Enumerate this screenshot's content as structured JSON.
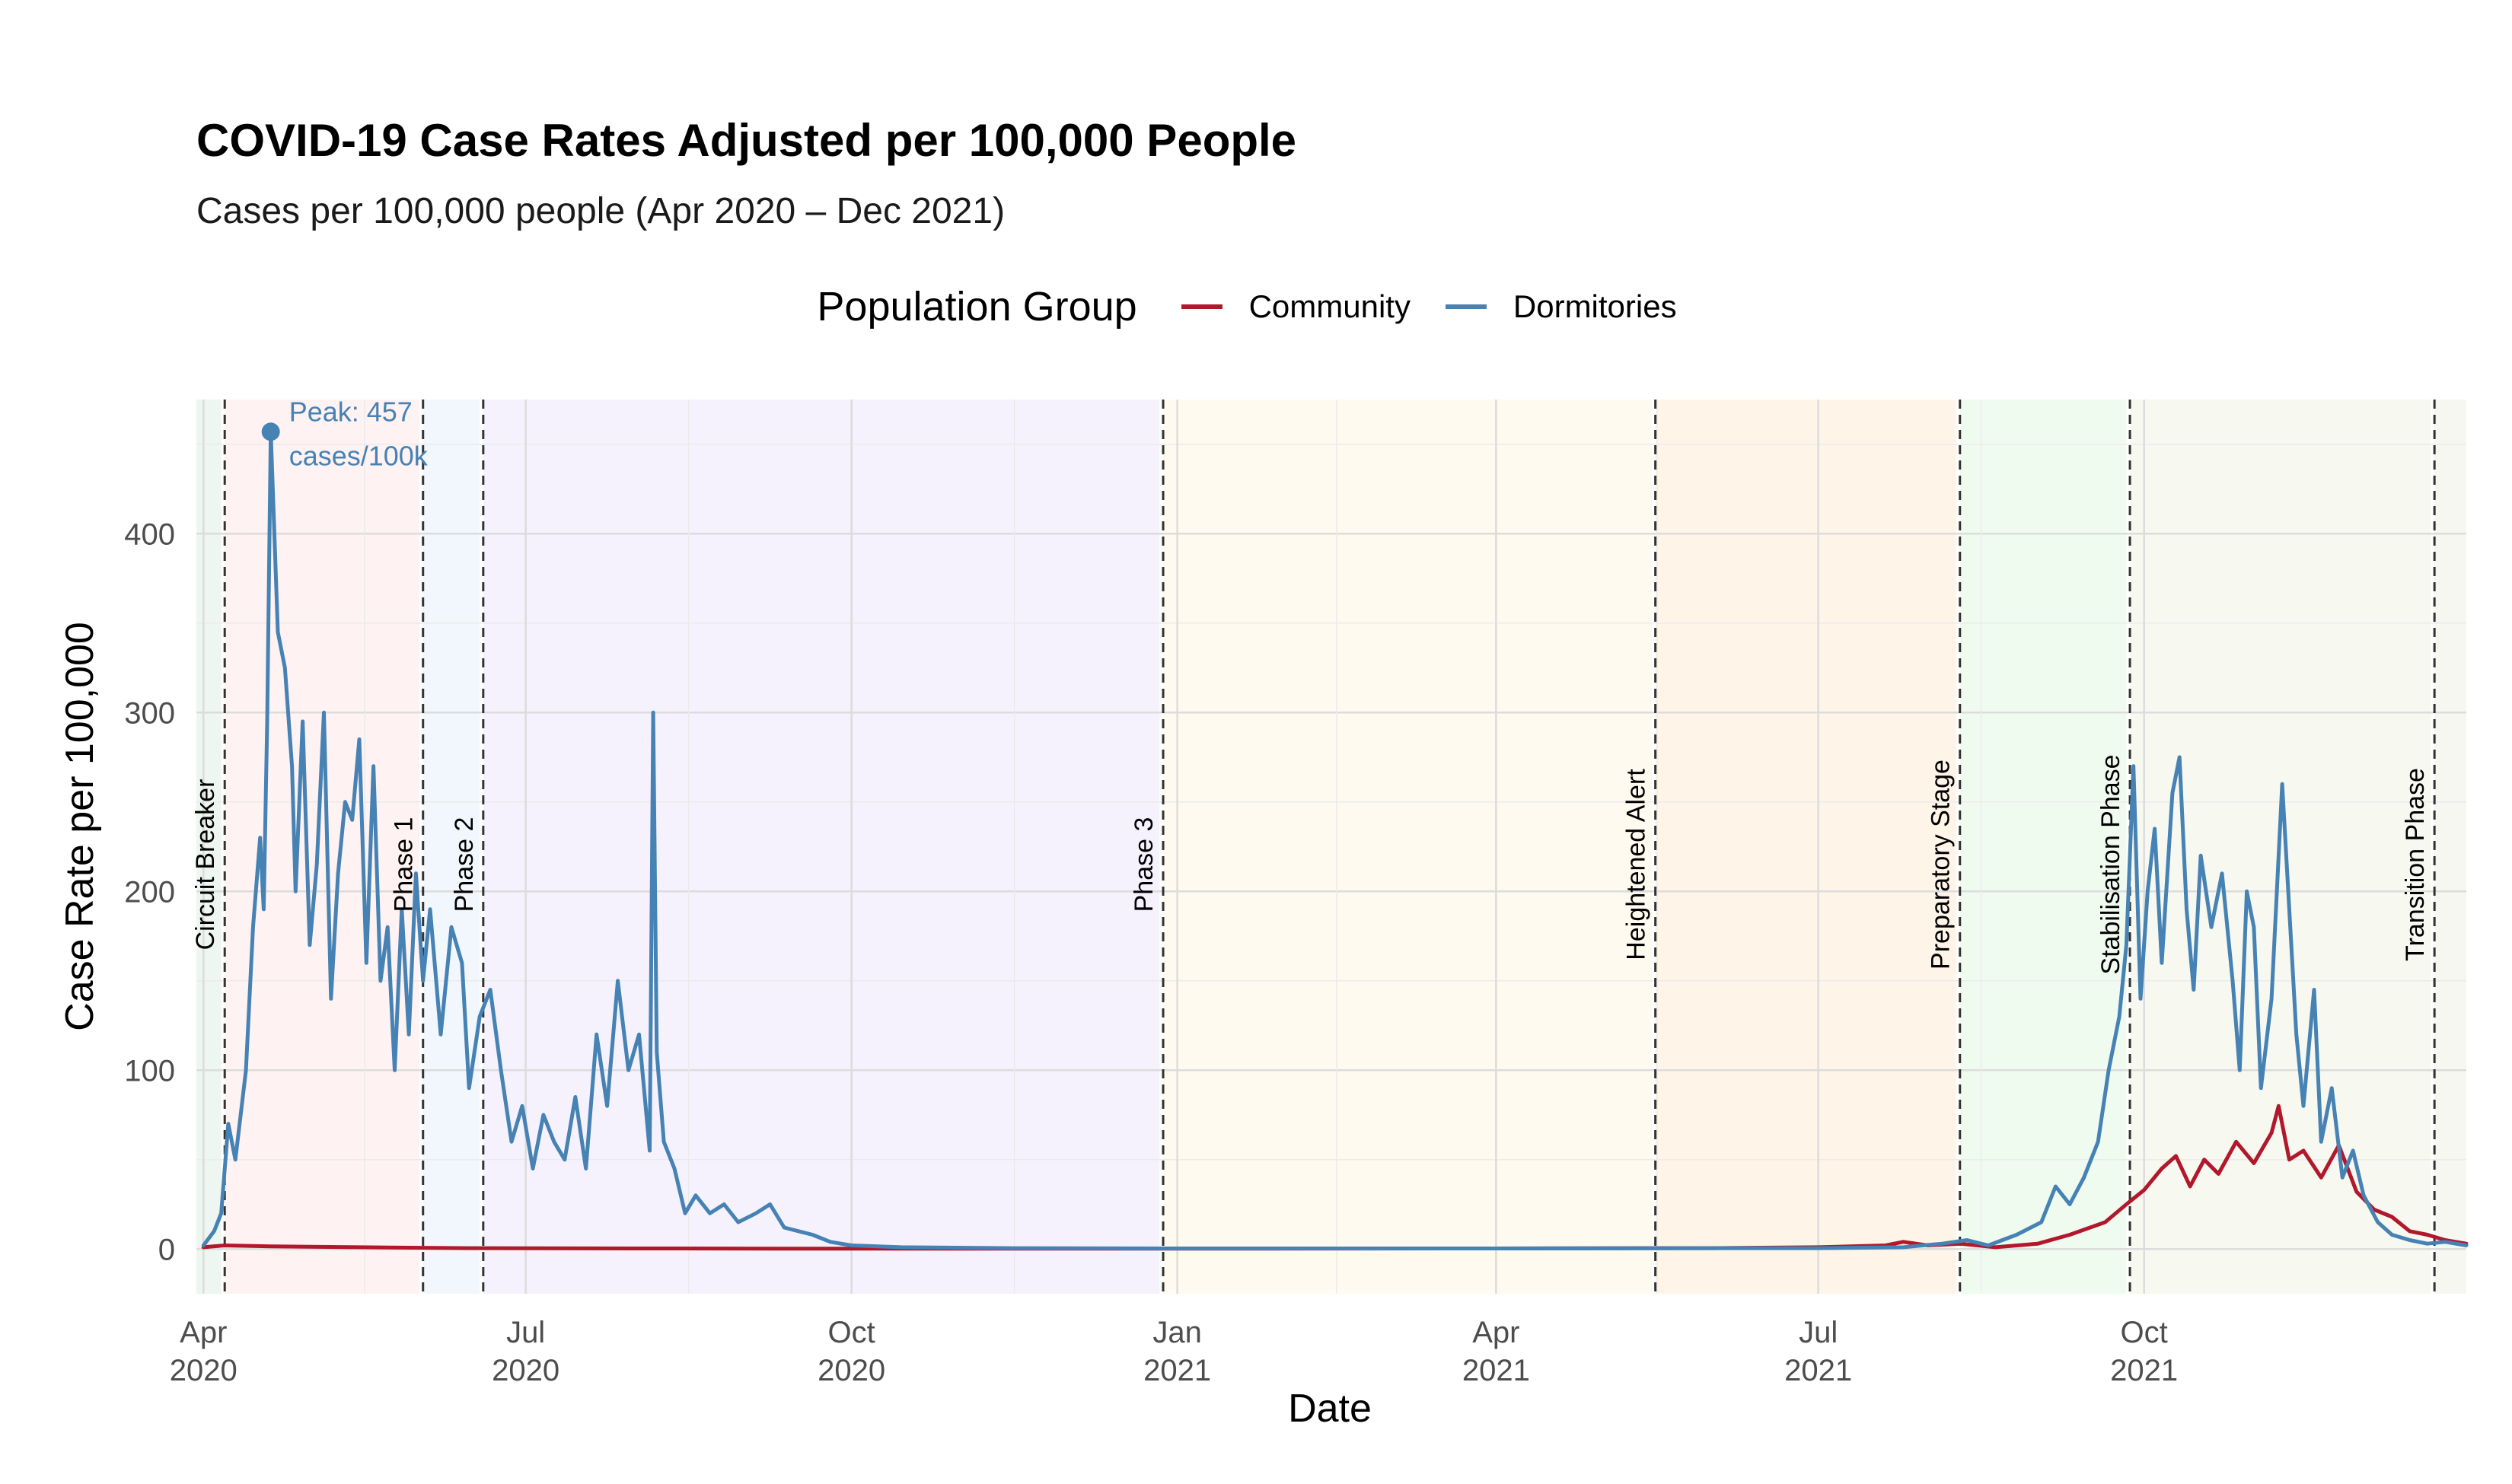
{
  "chart_data": {
    "type": "line",
    "title": "COVID-19 Case Rates Adjusted per 100,000 People",
    "subtitle": "Cases per 100,000 people (Apr 2020 – Dec 2021)",
    "xlabel": "Date",
    "ylabel": "Case Rate per 100,000",
    "ylim": [
      -25,
      475
    ],
    "xlim": [
      "2020-03-30",
      "2021-12-31"
    ],
    "y_ticks": [
      0,
      100,
      200,
      300,
      400
    ],
    "x_ticks": [
      {
        "date": "2020-04-01",
        "line1": "Apr",
        "line2": "2020"
      },
      {
        "date": "2020-07-01",
        "line1": "Jul",
        "line2": "2020"
      },
      {
        "date": "2020-10-01",
        "line1": "Oct",
        "line2": "2020"
      },
      {
        "date": "2021-01-01",
        "line1": "Jan",
        "line2": "2021"
      },
      {
        "date": "2021-04-01",
        "line1": "Apr",
        "line2": "2021"
      },
      {
        "date": "2021-07-01",
        "line1": "Jul",
        "line2": "2021"
      },
      {
        "date": "2021-10-01",
        "line1": "Oct",
        "line2": "2021"
      }
    ],
    "grid": true,
    "legend": {
      "title": "Population Group",
      "position": "top"
    },
    "series": [
      {
        "name": "Community",
        "color": "#b2182b",
        "points": [
          [
            "2020-04-01",
            1
          ],
          [
            "2020-04-07",
            2
          ],
          [
            "2020-04-20",
            1.5
          ],
          [
            "2020-05-15",
            1
          ],
          [
            "2020-06-15",
            0.5
          ],
          [
            "2020-08-01",
            0.3
          ],
          [
            "2020-10-01",
            0.2
          ],
          [
            "2021-01-01",
            0.2
          ],
          [
            "2021-04-01",
            0.3
          ],
          [
            "2021-05-15",
            0.5
          ],
          [
            "2021-06-01",
            0.5
          ],
          [
            "2021-07-01",
            1
          ],
          [
            "2021-07-20",
            2
          ],
          [
            "2021-07-25",
            4
          ],
          [
            "2021-08-01",
            2
          ],
          [
            "2021-08-10",
            3
          ],
          [
            "2021-08-20",
            1
          ],
          [
            "2021-09-01",
            3
          ],
          [
            "2021-09-10",
            8
          ],
          [
            "2021-09-20",
            15
          ],
          [
            "2021-09-26",
            25
          ],
          [
            "2021-10-01",
            33
          ],
          [
            "2021-10-06",
            45
          ],
          [
            "2021-10-10",
            52
          ],
          [
            "2021-10-14",
            35
          ],
          [
            "2021-10-18",
            50
          ],
          [
            "2021-10-22",
            42
          ],
          [
            "2021-10-27",
            60
          ],
          [
            "2021-11-01",
            48
          ],
          [
            "2021-11-06",
            65
          ],
          [
            "2021-11-08",
            80
          ],
          [
            "2021-11-11",
            50
          ],
          [
            "2021-11-15",
            55
          ],
          [
            "2021-11-20",
            40
          ],
          [
            "2021-11-25",
            58
          ],
          [
            "2021-11-30",
            32
          ],
          [
            "2021-12-05",
            22
          ],
          [
            "2021-12-10",
            18
          ],
          [
            "2021-12-15",
            10
          ],
          [
            "2021-12-20",
            8
          ],
          [
            "2021-12-25",
            5
          ],
          [
            "2021-12-31",
            3
          ]
        ]
      },
      {
        "name": "Dormitories",
        "color": "#4682b4",
        "points": [
          [
            "2020-04-01",
            2
          ],
          [
            "2020-04-04",
            10
          ],
          [
            "2020-04-06",
            20
          ],
          [
            "2020-04-08",
            70
          ],
          [
            "2020-04-10",
            50
          ],
          [
            "2020-04-13",
            100
          ],
          [
            "2020-04-15",
            180
          ],
          [
            "2020-04-17",
            230
          ],
          [
            "2020-04-18",
            190
          ],
          [
            "2020-04-19",
            295
          ],
          [
            "2020-04-20",
            457
          ],
          [
            "2020-04-22",
            345
          ],
          [
            "2020-04-24",
            325
          ],
          [
            "2020-04-26",
            270
          ],
          [
            "2020-04-27",
            200
          ],
          [
            "2020-04-29",
            295
          ],
          [
            "2020-05-01",
            170
          ],
          [
            "2020-05-03",
            215
          ],
          [
            "2020-05-05",
            300
          ],
          [
            "2020-05-07",
            140
          ],
          [
            "2020-05-09",
            210
          ],
          [
            "2020-05-11",
            250
          ],
          [
            "2020-05-13",
            240
          ],
          [
            "2020-05-15",
            285
          ],
          [
            "2020-05-17",
            160
          ],
          [
            "2020-05-19",
            270
          ],
          [
            "2020-05-21",
            150
          ],
          [
            "2020-05-23",
            180
          ],
          [
            "2020-05-25",
            100
          ],
          [
            "2020-05-27",
            190
          ],
          [
            "2020-05-29",
            120
          ],
          [
            "2020-05-31",
            210
          ],
          [
            "2020-06-02",
            150
          ],
          [
            "2020-06-04",
            190
          ],
          [
            "2020-06-07",
            120
          ],
          [
            "2020-06-10",
            180
          ],
          [
            "2020-06-13",
            160
          ],
          [
            "2020-06-15",
            90
          ],
          [
            "2020-06-18",
            130
          ],
          [
            "2020-06-21",
            145
          ],
          [
            "2020-06-24",
            100
          ],
          [
            "2020-06-27",
            60
          ],
          [
            "2020-06-30",
            80
          ],
          [
            "2020-07-03",
            45
          ],
          [
            "2020-07-06",
            75
          ],
          [
            "2020-07-09",
            60
          ],
          [
            "2020-07-12",
            50
          ],
          [
            "2020-07-15",
            85
          ],
          [
            "2020-07-18",
            45
          ],
          [
            "2020-07-21",
            120
          ],
          [
            "2020-07-24",
            80
          ],
          [
            "2020-07-27",
            150
          ],
          [
            "2020-07-30",
            100
          ],
          [
            "2020-08-02",
            120
          ],
          [
            "2020-08-05",
            55
          ],
          [
            "2020-08-06",
            300
          ],
          [
            "2020-08-07",
            110
          ],
          [
            "2020-08-09",
            60
          ],
          [
            "2020-08-12",
            45
          ],
          [
            "2020-08-15",
            20
          ],
          [
            "2020-08-18",
            30
          ],
          [
            "2020-08-22",
            20
          ],
          [
            "2020-08-26",
            25
          ],
          [
            "2020-08-30",
            15
          ],
          [
            "2020-09-04",
            20
          ],
          [
            "2020-09-08",
            25
          ],
          [
            "2020-09-12",
            12
          ],
          [
            "2020-09-16",
            10
          ],
          [
            "2020-09-20",
            8
          ],
          [
            "2020-09-25",
            4
          ],
          [
            "2020-10-01",
            2
          ],
          [
            "2020-10-15",
            1
          ],
          [
            "2020-11-15",
            0.5
          ],
          [
            "2021-01-01",
            0.3
          ],
          [
            "2021-04-01",
            0.3
          ],
          [
            "2021-06-01",
            0.5
          ],
          [
            "2021-07-01",
            0.5
          ],
          [
            "2021-07-25",
            1
          ],
          [
            "2021-08-05",
            3
          ],
          [
            "2021-08-12",
            5
          ],
          [
            "2021-08-18",
            2
          ],
          [
            "2021-08-26",
            8
          ],
          [
            "2021-09-02",
            15
          ],
          [
            "2021-09-06",
            35
          ],
          [
            "2021-09-10",
            25
          ],
          [
            "2021-09-14",
            40
          ],
          [
            "2021-09-18",
            60
          ],
          [
            "2021-09-21",
            100
          ],
          [
            "2021-09-24",
            130
          ],
          [
            "2021-09-26",
            170
          ],
          [
            "2021-09-28",
            270
          ],
          [
            "2021-09-30",
            140
          ],
          [
            "2021-10-02",
            200
          ],
          [
            "2021-10-04",
            235
          ],
          [
            "2021-10-06",
            160
          ],
          [
            "2021-10-09",
            255
          ],
          [
            "2021-10-11",
            275
          ],
          [
            "2021-10-13",
            190
          ],
          [
            "2021-10-15",
            145
          ],
          [
            "2021-10-17",
            220
          ],
          [
            "2021-10-20",
            180
          ],
          [
            "2021-10-23",
            210
          ],
          [
            "2021-10-26",
            150
          ],
          [
            "2021-10-28",
            100
          ],
          [
            "2021-10-30",
            200
          ],
          [
            "2021-11-01",
            180
          ],
          [
            "2021-11-03",
            90
          ],
          [
            "2021-11-06",
            140
          ],
          [
            "2021-11-09",
            260
          ],
          [
            "2021-11-11",
            190
          ],
          [
            "2021-11-13",
            120
          ],
          [
            "2021-11-15",
            80
          ],
          [
            "2021-11-18",
            145
          ],
          [
            "2021-11-20",
            60
          ],
          [
            "2021-11-23",
            90
          ],
          [
            "2021-11-26",
            40
          ],
          [
            "2021-11-29",
            55
          ],
          [
            "2021-12-02",
            30
          ],
          [
            "2021-12-06",
            15
          ],
          [
            "2021-12-10",
            8
          ],
          [
            "2021-12-15",
            5
          ],
          [
            "2021-12-20",
            3
          ],
          [
            "2021-12-25",
            4
          ],
          [
            "2021-12-31",
            2
          ]
        ]
      }
    ],
    "phases": [
      {
        "label": "Circuit Breaker",
        "start": "2020-04-07",
        "end": "2020-06-01",
        "fill": "#fdeaea"
      },
      {
        "label": "Phase 1",
        "start": "2020-06-02",
        "end": "2020-06-18",
        "fill": "#e8f1fb"
      },
      {
        "label": "Phase 2",
        "start": "2020-06-19",
        "end": "2020-12-27",
        "fill": "#eeeafb"
      },
      {
        "label": "Phase 3",
        "start": "2020-12-28",
        "end": "2021-05-15",
        "fill": "#fdf6e6"
      },
      {
        "label": "Heightened Alert",
        "start": "2021-05-16",
        "end": "2021-08-09",
        "fill": "#fdeed8"
      },
      {
        "label": "Preparatory Stage",
        "start": "2021-08-10",
        "end": "2021-09-26",
        "fill": "#e6f8e6"
      },
      {
        "label": "Stabilisation Phase",
        "start": "2021-09-27",
        "end": "2021-12-21",
        "fill": "#f2f3e6"
      },
      {
        "label": "Transition Phase",
        "start": "2021-12-22",
        "end": "2021-12-31",
        "fill": "#eef2e6"
      }
    ],
    "pre_phase": {
      "start": "2020-03-30",
      "end": "2020-04-06",
      "fill": "#e6f2ea"
    },
    "annotation": {
      "date": "2020-04-20",
      "value": 457,
      "line1": "Peak: 457",
      "line2": "cases/100k",
      "color": "#4682b4"
    }
  }
}
